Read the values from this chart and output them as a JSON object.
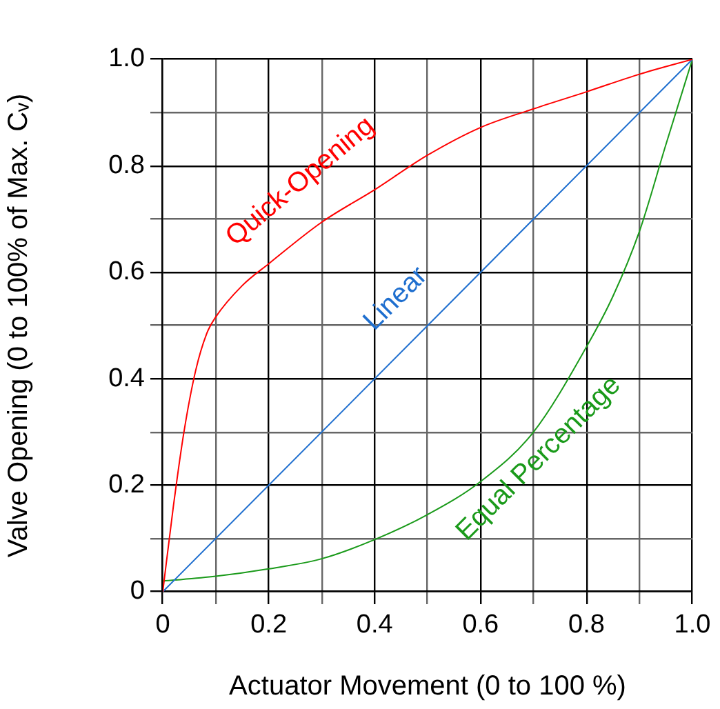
{
  "chart_data": {
    "type": "line",
    "xlabel": "Actuator Movement (0 to 100 %)",
    "ylabel": "Valve Opening (0 to 100% of Max. Cᵥ)",
    "xlim": [
      0,
      1
    ],
    "ylim": [
      0,
      1
    ],
    "xticks": [
      0,
      {
        "value": 0.1,
        "label": null
      },
      0.2,
      {
        "value": 0.3,
        "label": null
      },
      0.4,
      {
        "value": 0.5,
        "label": null
      },
      0.6,
      {
        "value": 0.7,
        "label": null
      },
      0.8,
      {
        "value": 0.9,
        "label": null
      },
      {
        "value": 1,
        "label": "1.0"
      }
    ],
    "yticks": [
      0,
      {
        "value": 0.1,
        "label": null
      },
      0.2,
      {
        "value": 0.3,
        "label": null
      },
      0.4,
      {
        "value": 0.5,
        "label": null
      },
      0.6,
      {
        "value": 0.7,
        "label": null
      },
      0.8,
      {
        "value": 0.9,
        "label": null
      },
      {
        "value": 1,
        "label": "1.0"
      }
    ],
    "grid": true,
    "marker": "none",
    "line_style": "solid",
    "legend": false,
    "series": [
      {
        "color": "#ff0000",
        "x": [
          0,
          0.02,
          0.04,
          0.062,
          0.083,
          0.1,
          0.15,
          0.2,
          0.3,
          0.4,
          0.5,
          0.6,
          0.7,
          0.8,
          0.9,
          1
        ],
        "values": [
          0,
          0.16,
          0.3,
          0.415,
          0.485,
          0.516,
          0.575,
          0.616,
          0.694,
          0.755,
          0.82,
          0.872,
          0.907,
          0.939,
          0.972,
          1
        ]
      },
      {
        "color": "#1f6fcf",
        "x": [
          0,
          1
        ],
        "values": [
          0,
          1
        ]
      },
      {
        "color": "#1a9a1a",
        "x": [
          0,
          0.1,
          0.2,
          0.3,
          0.4,
          0.5,
          0.6,
          0.7,
          0.8,
          0.85,
          0.9,
          0.95,
          1
        ],
        "values": [
          0.02,
          0.029,
          0.043,
          0.062,
          0.098,
          0.145,
          0.207,
          0.3,
          0.46,
          0.555,
          0.677,
          0.84,
          1
        ]
      }
    ],
    "annotations": [
      "Quick-Opening",
      "Linear",
      "Equal Percentage"
    ]
  }
}
